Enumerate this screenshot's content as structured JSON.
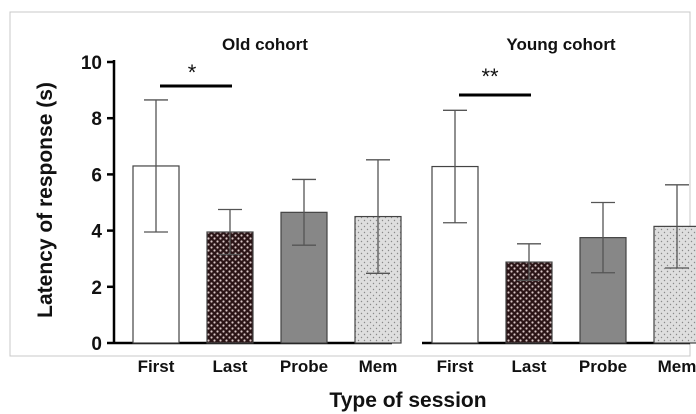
{
  "chart_data": {
    "type": "bar",
    "title": "",
    "xlabel": "Type of session",
    "ylabel": "Latency of response (s)",
    "ylim": [
      0,
      10
    ],
    "yticks": [
      0,
      2,
      4,
      6,
      8,
      10
    ],
    "grid": false,
    "groups": [
      {
        "name": "Old cohort",
        "categories": [
          "First",
          "Last",
          "Probe",
          "Mem"
        ],
        "values": [
          6.3,
          3.95,
          4.65,
          4.5
        ],
        "errors": [
          2.35,
          0.8,
          1.17,
          2.02
        ],
        "significance": {
          "label": "*",
          "between": [
            "First",
            "Last"
          ]
        }
      },
      {
        "name": "Young cohort",
        "categories": [
          "First",
          "Last",
          "Probe",
          "Mem"
        ],
        "values": [
          6.28,
          2.88,
          3.75,
          4.15
        ],
        "errors": [
          2.0,
          0.65,
          1.25,
          1.48
        ],
        "significance": {
          "label": "**",
          "between": [
            "First",
            "Last"
          ]
        }
      }
    ],
    "fills": {
      "First": {
        "color": "#ffffff",
        "pattern": "none"
      },
      "Last": {
        "color": "#2a1416",
        "pattern": "dots-light"
      },
      "Probe": {
        "color": "#878787",
        "pattern": "none"
      },
      "Mem": {
        "color": "#dedede",
        "pattern": "dots-dark"
      }
    }
  }
}
